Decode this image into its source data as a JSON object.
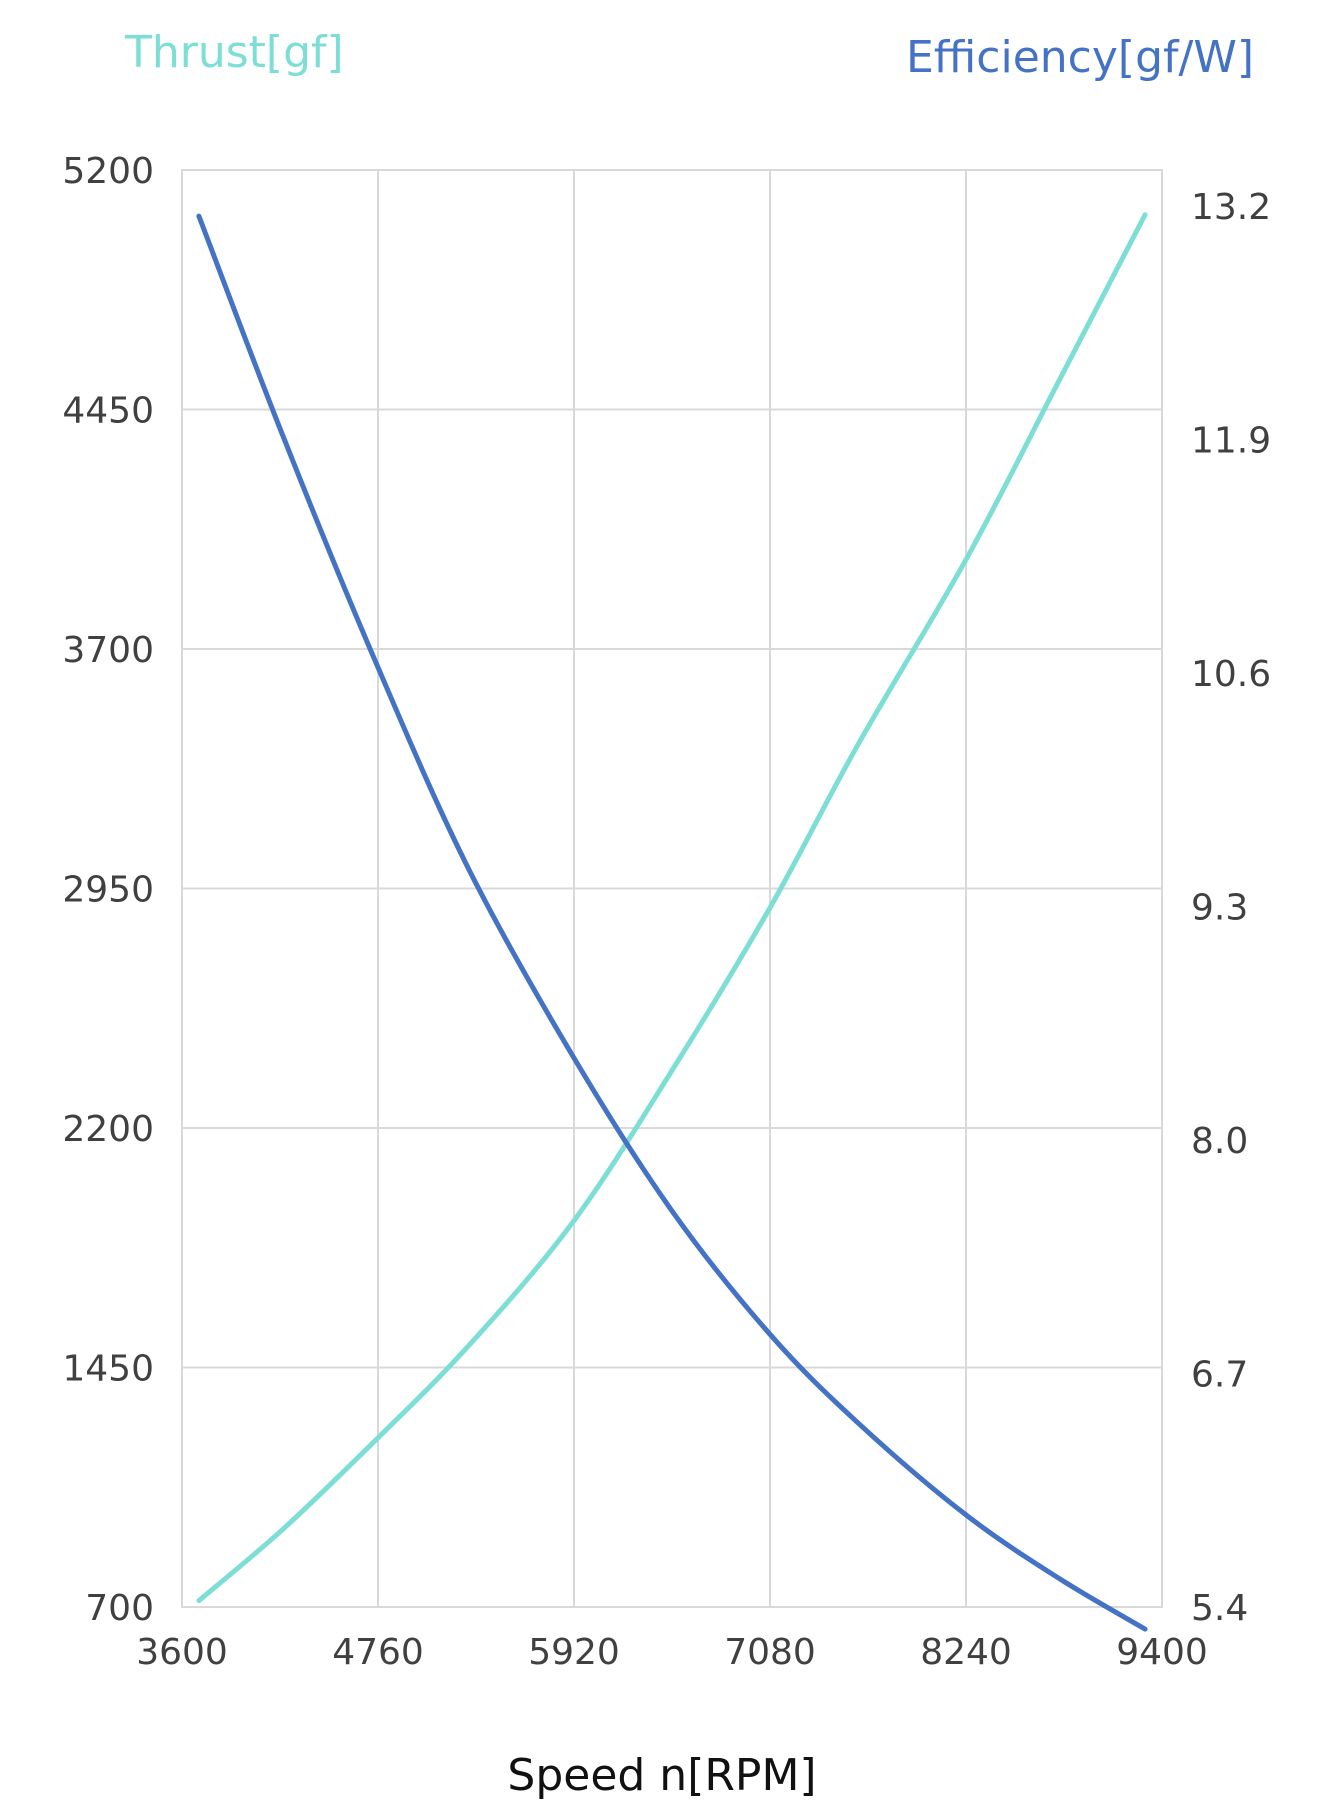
{
  "chart_data": {
    "type": "line",
    "xlabel": "Speed n[RPM]",
    "ylabel_left": "Thrust[gf]",
    "ylabel_right": "Efficiency[gf/W]",
    "xlim": [
      3600,
      9400
    ],
    "ylim_left": [
      700,
      5200
    ],
    "ylim_right": [
      5.4,
      13.2
    ],
    "x_ticks": [
      "3600",
      "4760",
      "5920",
      "7080",
      "8240",
      "9400"
    ],
    "y_left_ticks": [
      "700",
      "1450",
      "2200",
      "2950",
      "3700",
      "4450",
      "5200"
    ],
    "y_right_ticks": [
      "5.4",
      "6.7",
      "8.0",
      "9.3",
      "10.6",
      "11.9",
      "13.2"
    ],
    "grid": true,
    "series": [
      {
        "name": "Thrust[gf]",
        "axis": "left",
        "color": "#7dded5",
        "x": [
          3700,
          4200,
          4760,
          5300,
          5920,
          6500,
          7080,
          7600,
          8240,
          8800,
          9300
        ],
        "y": [
          720,
          945,
          1230,
          1520,
          1910,
          2380,
          2890,
          3400,
          3980,
          4550,
          5060
        ]
      },
      {
        "name": "Efficiency[gf/W]",
        "axis": "right",
        "color": "#4472c4",
        "x": [
          3700,
          4200,
          4760,
          5300,
          5920,
          6500,
          7080,
          7600,
          8240,
          8800,
          9300
        ],
        "y": [
          12.95,
          11.75,
          10.5,
          9.4,
          8.38,
          7.55,
          6.88,
          6.4,
          5.9,
          5.55,
          5.28
        ]
      }
    ]
  }
}
